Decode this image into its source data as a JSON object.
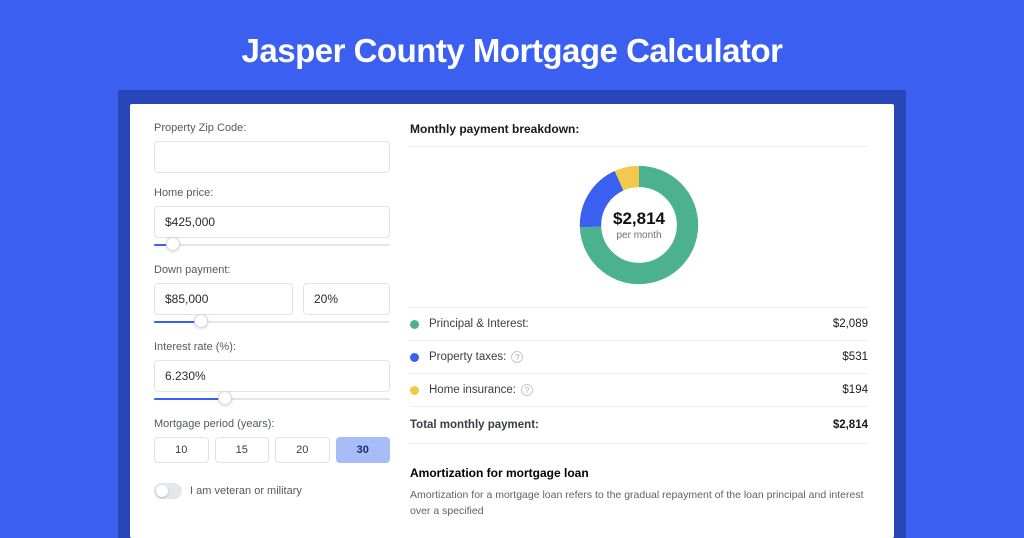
{
  "title": "Jasper County Mortgage Calculator",
  "colors": {
    "bg": "#3b5ff1",
    "cardOuter": "#2845b8",
    "principal": "#4bb18f",
    "tax": "#3b5ff1",
    "insurance": "#f2c94c"
  },
  "form": {
    "zip": {
      "label": "Property Zip Code:",
      "value": ""
    },
    "price": {
      "label": "Home price:",
      "value": "$425,000",
      "sliderPct": 8
    },
    "down": {
      "label": "Down payment:",
      "amount": "$85,000",
      "percent": "20%",
      "sliderPct": 20
    },
    "rate": {
      "label": "Interest rate (%):",
      "value": "6.230%",
      "sliderPct": 30
    },
    "period": {
      "label": "Mortgage period (years):",
      "options": [
        "10",
        "15",
        "20",
        "30"
      ],
      "selected": "30"
    },
    "veteran": {
      "label": "I am veteran or military",
      "on": false
    }
  },
  "breakdown": {
    "heading": "Monthly payment breakdown:",
    "donut": {
      "amount": "$2,814",
      "sub": "per month",
      "slices": [
        {
          "key": "principal",
          "value": 2089,
          "color": "#4bb18f"
        },
        {
          "key": "tax",
          "value": 531,
          "color": "#3b5ff1"
        },
        {
          "key": "insurance",
          "value": 194,
          "color": "#f2c94c"
        }
      ]
    },
    "legend": [
      {
        "label": "Principal & Interest:",
        "value": "$2,089",
        "color": "#4bb18f",
        "help": false
      },
      {
        "label": "Property taxes:",
        "value": "$531",
        "color": "#3b5ff1",
        "help": true
      },
      {
        "label": "Home insurance:",
        "value": "$194",
        "color": "#f2c94c",
        "help": true
      }
    ],
    "total": {
      "label": "Total monthly payment:",
      "value": "$2,814"
    }
  },
  "amort": {
    "heading": "Amortization for mortgage loan",
    "text": "Amortization for a mortgage loan refers to the gradual repayment of the loan principal and interest over a specified"
  }
}
